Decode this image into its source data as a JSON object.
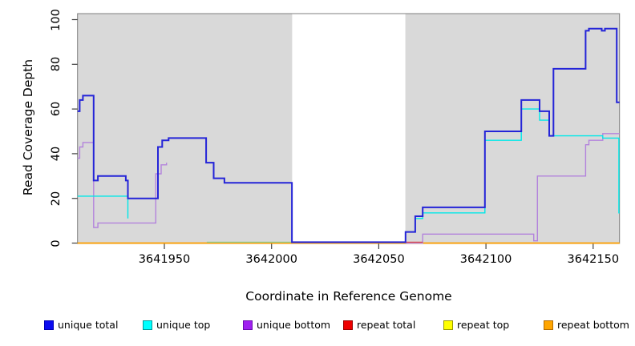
{
  "figure": {
    "y_axis_title": "Read Coverage Depth",
    "x_axis_title": "Coordinate in Reference Genome"
  },
  "chart_data": {
    "type": "line",
    "subtype": "step-coverage-plot",
    "title": "",
    "xlabel": "Coordinate in Reference Genome",
    "ylabel": "Read Coverage Depth",
    "xlim": [
      3641909.5,
      3642162.3
    ],
    "ylim": [
      0,
      100
    ],
    "grid": false,
    "plot_bg_blocks_color": "#d9d9d9",
    "box_color": "#7f7f7f",
    "x_ticks": [
      3641950,
      3642000,
      3642050,
      3642100,
      3642150
    ],
    "x_tick_labels": [
      "3641950",
      "3642000",
      "3642050",
      "3642100",
      "3642150"
    ],
    "y_ticks": [
      0,
      20,
      40,
      60,
      80,
      100
    ],
    "y_tick_labels": [
      "0",
      "20",
      "40",
      "60",
      "80",
      "100"
    ],
    "coverage_blocks": [
      {
        "from": 3641909.5,
        "to": 3642009.6
      },
      {
        "from": 3642062.4,
        "to": 3642162.3
      }
    ],
    "gap_region": {
      "from": 3642009.6,
      "to": 3642062.4,
      "appearance": "white, no background"
    },
    "series": [
      {
        "name": "repeat top",
        "color": "#ffff00",
        "lw": 1.3,
        "end": 3642162.3,
        "points": [
          [
            3641909.5,
            0
          ]
        ],
        "note": "hidden beneath repeat bottom line at 0"
      },
      {
        "name": "repeat bottom",
        "color": "#ff9d00",
        "lw": 1.7,
        "end": 3642162.3,
        "points": [
          [
            3641909.5,
            0
          ]
        ]
      },
      {
        "name": "unique top + repeat overlap",
        "color": "#90cc90",
        "lw": 1.3,
        "end": 3642009.5,
        "points": [
          [
            3641969.8,
            0.4
          ]
        ],
        "note": "greenish blended segment just above zero before the gap"
      },
      {
        "name": "unique bottom",
        "color": "#b383dc",
        "lw": 1.4,
        "end": 3642162.3,
        "points": [
          [
            3641909.5,
            38
          ],
          [
            3641910.5,
            43
          ],
          [
            3641912,
            45
          ],
          [
            3641917,
            7
          ],
          [
            3641919,
            9
          ],
          [
            3641946,
            31
          ],
          [
            3641948.5,
            35
          ],
          [
            3641951,
            36
          ],
          [
            3641973,
            null
          ],
          [
            3642062.5,
            0
          ],
          [
            3642070.5,
            4
          ],
          [
            3642122.3,
            1
          ],
          [
            3642124,
            30
          ],
          [
            3642146.5,
            44
          ],
          [
            3642148,
            46
          ],
          [
            3642154.5,
            49
          ]
        ]
      },
      {
        "name": "repeat total",
        "color": "#d94a4a",
        "lw": 1.3,
        "end": 3642070.5,
        "points": [
          [
            3642062.5,
            0.4
          ]
        ],
        "note": "short visible stub just after the gap"
      },
      {
        "name": "unique top",
        "color": "#00e8e8",
        "lw": 1.4,
        "end": 3642162.3,
        "points": [
          [
            3641909.5,
            21
          ],
          [
            3641933,
            11
          ],
          [
            3641969.8,
            null
          ],
          [
            3642062.5,
            5
          ],
          [
            3642067,
            11
          ],
          [
            3642070.5,
            13.5
          ],
          [
            3642099.5,
            46
          ],
          [
            3642116.5,
            60
          ],
          [
            3642125,
            55
          ],
          [
            3642129.5,
            48
          ],
          [
            3642154.5,
            47
          ],
          [
            3642162,
            13.5
          ]
        ]
      },
      {
        "name": "unique total",
        "color": "#2424d8",
        "lw": 2,
        "end": 3642162.3,
        "points": [
          [
            3641909.5,
            59
          ],
          [
            3641910.5,
            64
          ],
          [
            3641912,
            66
          ],
          [
            3641917,
            28
          ],
          [
            3641919,
            30
          ],
          [
            3641932,
            28
          ],
          [
            3641933,
            20
          ],
          [
            3641947,
            43
          ],
          [
            3641949,
            46
          ],
          [
            3641952,
            47
          ],
          [
            3641969.5,
            36
          ],
          [
            3641973,
            29
          ],
          [
            3641978,
            27
          ],
          [
            3642009.5,
            0.4
          ],
          [
            3642062.5,
            5
          ],
          [
            3642067,
            12
          ],
          [
            3642070.5,
            16
          ],
          [
            3642099.5,
            50
          ],
          [
            3642116.5,
            64
          ],
          [
            3642125,
            59
          ],
          [
            3642129.5,
            48
          ],
          [
            3642131.5,
            78
          ],
          [
            3642146.5,
            95
          ],
          [
            3642148,
            96
          ],
          [
            3642154,
            95
          ],
          [
            3642155.5,
            96
          ],
          [
            3642161,
            63
          ]
        ]
      }
    ],
    "legend_position": "bottom"
  },
  "legend": {
    "items": [
      {
        "label": "unique total",
        "fill": "#0b0bf0",
        "border": "#0000b4"
      },
      {
        "label": "unique top",
        "fill": "#00ffff",
        "border": "#009a9a"
      },
      {
        "label": "unique bottom",
        "fill": "#a020f0",
        "border": "#6a0dad"
      },
      {
        "label": "repeat total",
        "fill": "#ee0000",
        "border": "#990000"
      },
      {
        "label": "repeat top",
        "fill": "#ffff00",
        "border": "#9a9a00"
      },
      {
        "label": "repeat bottom",
        "fill": "#ffa500",
        "border": "#b36b00"
      }
    ]
  }
}
